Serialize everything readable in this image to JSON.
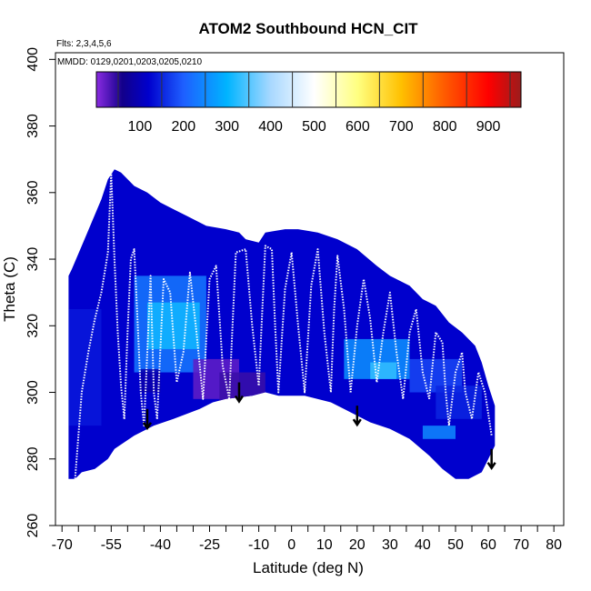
{
  "chart_data": {
    "type": "heatmap",
    "title": "ATOM2 Southbound HCN_CIT",
    "flights_note": "Flts: 2,3,4,5,6",
    "dates_note": "MMDD: 0129,0201,0203,0205,0210",
    "xlabel": "Latitude (deg N)",
    "ylabel": "Theta (C)",
    "xlim": [
      -72,
      83
    ],
    "ylim": [
      260,
      402
    ],
    "x_ticks": [
      -70,
      -55,
      -40,
      -25,
      -10,
      0,
      10,
      20,
      30,
      40,
      50,
      60,
      70,
      80
    ],
    "x_tick_labels": [
      "-70",
      "-55",
      "-40",
      "-25",
      "-10",
      "0",
      "10",
      "20",
      "30",
      "40",
      "50",
      "60",
      "70",
      "80"
    ],
    "x_minor_ticks": [
      -65,
      -60,
      -50,
      -45,
      -35,
      -30,
      -20,
      -15,
      -5,
      5,
      15,
      25,
      35,
      45,
      55,
      65,
      75
    ],
    "y_ticks": [
      260,
      280,
      300,
      320,
      340,
      360,
      380,
      400
    ],
    "y_tick_labels": [
      "260",
      "280",
      "300",
      "320",
      "340",
      "360",
      "380",
      "400"
    ],
    "colorbar": {
      "range": [
        0,
        975
      ],
      "ticks": [
        100,
        200,
        300,
        400,
        500,
        600,
        700,
        800,
        900
      ],
      "tick_labels": [
        "100",
        "200",
        "300",
        "400",
        "500",
        "600",
        "700",
        "800",
        "900"
      ]
    },
    "domain_upper": [
      [
        -68,
        335
      ],
      [
        -67,
        337
      ],
      [
        -64,
        344
      ],
      [
        -61,
        351
      ],
      [
        -58,
        358
      ],
      [
        -56,
        364
      ],
      [
        -54,
        367
      ],
      [
        -52,
        366
      ],
      [
        -48,
        362
      ],
      [
        -44,
        360
      ],
      [
        -40,
        357
      ],
      [
        -36,
        355
      ],
      [
        -32,
        353
      ],
      [
        -26,
        350
      ],
      [
        -20,
        349
      ],
      [
        -16,
        348
      ],
      [
        -14,
        346
      ],
      [
        -10,
        345
      ],
      [
        -8,
        348
      ],
      [
        -2,
        349
      ],
      [
        2,
        349
      ],
      [
        8,
        348
      ],
      [
        14,
        346
      ],
      [
        20,
        343
      ],
      [
        26,
        338
      ],
      [
        30,
        335
      ],
      [
        36,
        332
      ],
      [
        40,
        328
      ],
      [
        44,
        326
      ],
      [
        48,
        321
      ],
      [
        52,
        318
      ],
      [
        56,
        314
      ],
      [
        58,
        309
      ],
      [
        60,
        302
      ],
      [
        62,
        296
      ],
      [
        62,
        287
      ]
    ],
    "domain_lower": [
      [
        62,
        284
      ],
      [
        60,
        280
      ],
      [
        58,
        276
      ],
      [
        54,
        274
      ],
      [
        50,
        274
      ],
      [
        46,
        277
      ],
      [
        42,
        281
      ],
      [
        36,
        286
      ],
      [
        30,
        289
      ],
      [
        24,
        291
      ],
      [
        18,
        294
      ],
      [
        12,
        297
      ],
      [
        4,
        299
      ],
      [
        -4,
        299
      ],
      [
        -8,
        300
      ],
      [
        -12,
        299
      ],
      [
        -20,
        298
      ],
      [
        -24,
        297
      ],
      [
        -28,
        295
      ],
      [
        -36,
        292
      ],
      [
        -42,
        290
      ],
      [
        -48,
        287
      ],
      [
        -54,
        283
      ],
      [
        -56,
        280
      ],
      [
        -60,
        277
      ],
      [
        -64,
        276
      ],
      [
        -66,
        274
      ],
      [
        -68,
        274
      ]
    ],
    "patches": [
      {
        "lat": [
          -48,
          -26
        ],
        "theta": [
          306,
          335
        ],
        "value": 230
      },
      {
        "lat": [
          -44,
          -28
        ],
        "theta": [
          313,
          327
        ],
        "value": 310
      },
      {
        "lat": [
          -46,
          -40
        ],
        "theta": [
          300,
          307
        ],
        "value": 90
      },
      {
        "lat": [
          -30,
          -16
        ],
        "theta": [
          298,
          310
        ],
        "value": 20
      },
      {
        "lat": [
          -22,
          -8
        ],
        "theta": [
          296,
          306
        ],
        "value": 40
      },
      {
        "lat": [
          -68,
          -58
        ],
        "theta": [
          290,
          325
        ],
        "value": 140
      },
      {
        "lat": [
          16,
          36
        ],
        "theta": [
          304,
          316
        ],
        "value": 260
      },
      {
        "lat": [
          24,
          32
        ],
        "theta": [
          304,
          309
        ],
        "value": 330
      },
      {
        "lat": [
          36,
          52
        ],
        "theta": [
          300,
          310
        ],
        "value": 180
      },
      {
        "lat": [
          40,
          50
        ],
        "theta": [
          286,
          290
        ],
        "value": 250
      },
      {
        "lat": [
          44,
          58
        ],
        "theta": [
          292,
          302
        ],
        "value": 150
      }
    ],
    "flight_tracks": [
      {
        "name": "track-1",
        "points": [
          [
            -66,
            274
          ],
          [
            -64,
            300
          ],
          [
            -62,
            312
          ],
          [
            -60,
            322
          ],
          [
            -58,
            330
          ],
          [
            -56,
            342
          ],
          [
            -55,
            366
          ],
          [
            -54,
            340
          ],
          [
            -53,
            318
          ],
          [
            -52,
            302
          ],
          [
            -51,
            292
          ]
        ]
      },
      {
        "name": "track-2",
        "points": [
          [
            -51,
            292
          ],
          [
            -50,
            318
          ],
          [
            -49,
            340
          ],
          [
            -48,
            343
          ],
          [
            -47,
            322
          ],
          [
            -46,
            300
          ],
          [
            -45,
            290
          ],
          [
            -44,
            312
          ],
          [
            -43,
            335
          ],
          [
            -42,
            300
          ],
          [
            -41,
            292
          ]
        ]
      },
      {
        "name": "track-3",
        "points": [
          [
            -41,
            292
          ],
          [
            -39,
            334
          ],
          [
            -37,
            330
          ],
          [
            -35,
            303
          ],
          [
            -33,
            312
          ],
          [
            -31,
            336
          ],
          [
            -29,
            318
          ],
          [
            -27,
            298
          ],
          [
            -25,
            334
          ],
          [
            -23,
            338
          ],
          [
            -21,
            308
          ],
          [
            -19,
            298
          ]
        ]
      },
      {
        "name": "track-4",
        "points": [
          [
            -19,
            298
          ],
          [
            -17,
            342
          ],
          [
            -14,
            343
          ],
          [
            -12,
            320
          ],
          [
            -10,
            302
          ],
          [
            -8,
            344
          ],
          [
            -6,
            343
          ],
          [
            -5,
            320
          ],
          [
            -4,
            300
          ],
          [
            -2,
            331
          ],
          [
            0,
            342
          ]
        ]
      },
      {
        "name": "track-5",
        "points": [
          [
            0,
            342
          ],
          [
            2,
            320
          ],
          [
            4,
            300
          ],
          [
            6,
            332
          ],
          [
            8,
            343
          ],
          [
            10,
            318
          ],
          [
            12,
            300
          ],
          [
            13,
            325
          ],
          [
            14,
            341
          ],
          [
            16,
            325
          ],
          [
            18,
            300
          ]
        ]
      },
      {
        "name": "track-6",
        "points": [
          [
            18,
            300
          ],
          [
            20,
            320
          ],
          [
            22,
            334
          ],
          [
            24,
            322
          ],
          [
            26,
            303
          ],
          [
            28,
            318
          ],
          [
            30,
            330
          ],
          [
            32,
            312
          ],
          [
            34,
            298
          ],
          [
            36,
            318
          ],
          [
            38,
            325
          ],
          [
            40,
            306
          ],
          [
            42,
            298
          ]
        ]
      },
      {
        "name": "track-7",
        "points": [
          [
            42,
            298
          ],
          [
            44,
            318
          ],
          [
            46,
            315
          ],
          [
            47,
            300
          ],
          [
            48,
            290
          ],
          [
            50,
            306
          ],
          [
            52,
            312
          ],
          [
            53,
            300
          ],
          [
            55,
            292
          ],
          [
            57,
            306
          ],
          [
            59,
            300
          ],
          [
            61,
            287
          ]
        ]
      }
    ],
    "arrows": [
      {
        "lat": -44,
        "theta": 295
      },
      {
        "lat": -16,
        "theta": 303
      },
      {
        "lat": 20,
        "theta": 296
      },
      {
        "lat": 61,
        "theta": 283
      }
    ]
  }
}
